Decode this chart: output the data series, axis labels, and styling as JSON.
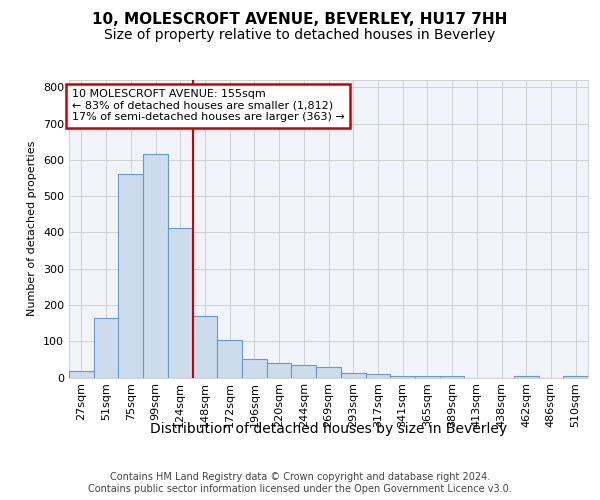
{
  "title": "10, MOLESCROFT AVENUE, BEVERLEY, HU17 7HH",
  "subtitle": "Size of property relative to detached houses in Beverley",
  "xlabel": "Distribution of detached houses by size in Beverley",
  "ylabel": "Number of detached properties",
  "footer_line1": "Contains HM Land Registry data © Crown copyright and database right 2024.",
  "footer_line2": "Contains public sector information licensed under the Open Government Licence v3.0.",
  "categories": [
    "27sqm",
    "51sqm",
    "75sqm",
    "99sqm",
    "124sqm",
    "148sqm",
    "172sqm",
    "196sqm",
    "220sqm",
    "244sqm",
    "269sqm",
    "293sqm",
    "317sqm",
    "341sqm",
    "365sqm",
    "389sqm",
    "413sqm",
    "438sqm",
    "462sqm",
    "486sqm",
    "510sqm"
  ],
  "values": [
    18,
    163,
    560,
    615,
    413,
    170,
    102,
    52,
    40,
    35,
    30,
    13,
    10,
    5,
    3,
    3,
    0,
    0,
    5,
    0,
    5
  ],
  "bar_color": "#ccdcec",
  "bar_edgecolor": "#6699cc",
  "vline_color": "#cc0000",
  "vline_index": 4.5,
  "ylim_max": 820,
  "yticks": [
    0,
    100,
    200,
    300,
    400,
    500,
    600,
    700,
    800
  ],
  "annotation_line1": "10 MOLESCROFT AVENUE: 155sqm",
  "annotation_line2": "← 83% of detached houses are smaller (1,812)",
  "annotation_line3": "17% of semi-detached houses are larger (363) →",
  "annotation_box_fc": "#ffffff",
  "annotation_box_ec": "#cc0000",
  "bg_color": "#ffffff",
  "plot_bg_color": "#f0f4f8",
  "grid_color": "#cccccc",
  "title_fontsize": 11,
  "subtitle_fontsize": 10,
  "ylabel_fontsize": 8,
  "xlabel_fontsize": 10,
  "tick_fontsize": 8,
  "ann_fontsize": 8,
  "footer_fontsize": 7
}
